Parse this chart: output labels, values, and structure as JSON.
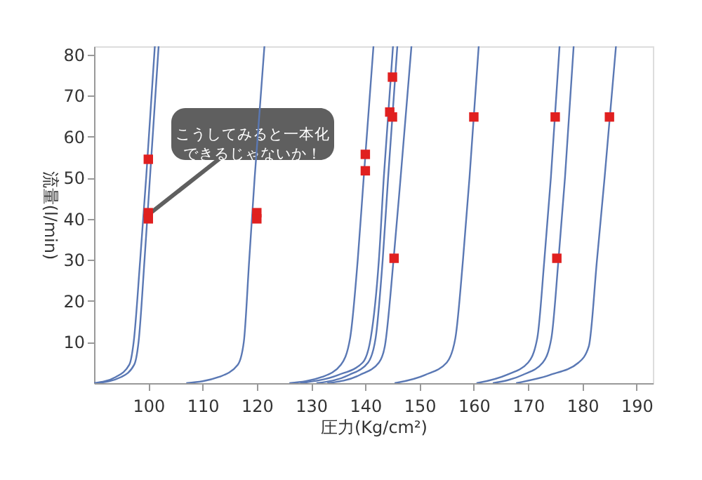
{
  "chart_data": {
    "type": "line",
    "xlabel": "圧力(Kg/cm²)",
    "ylabel": "流量(l/min)",
    "xlim": [
      90,
      193
    ],
    "ylim": [
      0,
      82
    ],
    "xticks": [
      100,
      110,
      120,
      130,
      140,
      150,
      160,
      170,
      180,
      190
    ],
    "yticks": [
      10,
      20,
      30,
      40,
      50,
      60,
      70,
      80
    ],
    "series": [
      {
        "color": "#5a78b4",
        "x": [
          90,
          94,
          96.5,
          97.3,
          98.5,
          99.6,
          101.2
        ],
        "values": [
          0,
          1.5,
          4.5,
          10,
          30,
          50,
          82
        ]
      },
      {
        "color": "#5a78b4",
        "x": [
          90.5,
          95,
          97.4,
          98.2,
          99.3,
          100.3,
          101.9
        ],
        "values": [
          0,
          1.5,
          4.5,
          10,
          30,
          50,
          82
        ]
      },
      {
        "color": "#5a78b4",
        "x": [
          107,
          113,
          116.5,
          117.6,
          118.6,
          119.6,
          121.4
        ],
        "values": [
          0,
          1.5,
          4.5,
          10,
          30,
          50,
          82
        ]
      },
      {
        "color": "#5a78b4",
        "x": [
          126,
          132,
          135.5,
          137.2,
          138.6,
          139.7,
          141.5
        ],
        "values": [
          0,
          1.5,
          4.5,
          11,
          30,
          50,
          82
        ]
      },
      {
        "color": "#5a78b4",
        "x": [
          128,
          135,
          139.5,
          141,
          142.5,
          143.4,
          145.1
        ],
        "values": [
          0,
          2,
          5,
          11,
          30,
          50,
          82
        ]
      },
      {
        "color": "#5a78b4",
        "x": [
          131,
          137,
          140.5,
          141.9,
          143.2,
          144.2,
          145.9
        ],
        "values": [
          0,
          2,
          5,
          11,
          30,
          50,
          82
        ]
      },
      {
        "color": "#5a78b4",
        "x": [
          133,
          139,
          142.5,
          143.6,
          145.2,
          146.5,
          148.5
        ],
        "values": [
          0,
          2,
          5,
          9,
          30,
          50,
          82
        ]
      },
      {
        "color": "#5a78b4",
        "x": [
          145.4,
          151,
          155,
          156.6,
          158,
          159.2,
          160.9
        ],
        "values": [
          0,
          2,
          5,
          11,
          30,
          50,
          82
        ]
      },
      {
        "color": "#5a78b4",
        "x": [
          160.5,
          166,
          170,
          171.7,
          173,
          174.2,
          175.8
        ],
        "values": [
          0,
          2,
          5,
          11,
          30,
          50,
          82
        ]
      },
      {
        "color": "#5a78b4",
        "x": [
          163.5,
          169,
          172.7,
          174.3,
          175.6,
          176.8,
          178.4
        ],
        "values": [
          0,
          2,
          5,
          11,
          30,
          50,
          82
        ]
      },
      {
        "color": "#5a78b4",
        "x": [
          167.8,
          174,
          179.3,
          181.2,
          182.7,
          184.1,
          186.2
        ],
        "values": [
          0,
          2,
          5,
          9,
          30,
          50,
          82
        ]
      },
      {
        "type": "scatter",
        "color": "#e02020",
        "marker": "square",
        "x": [
          100,
          100,
          100,
          120,
          120,
          140,
          140,
          144.5,
          145,
          145,
          145.3,
          160,
          175,
          175.3,
          185
        ],
        "values": [
          54.5,
          41.5,
          40,
          41.5,
          40,
          55.7,
          51.7,
          66,
          74.5,
          64.8,
          30.4,
          64.8,
          64.8,
          30.4,
          64.8
        ]
      }
    ],
    "annotations": [
      {
        "text": "こうしてみると一本化できるじゃないか！",
        "x": 100,
        "y": 41
      }
    ]
  }
}
